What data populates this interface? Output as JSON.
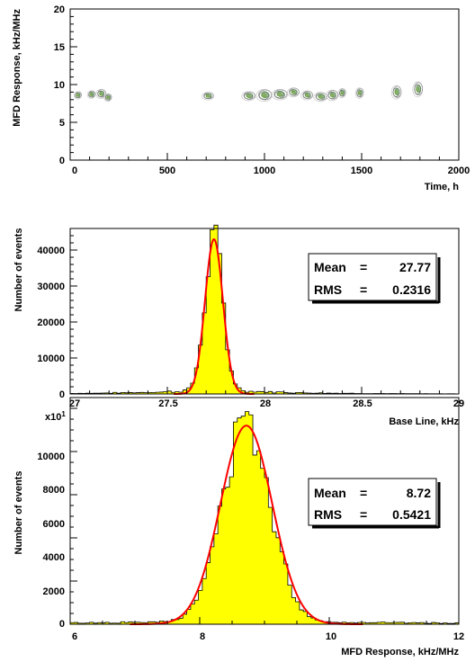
{
  "chart_data": [
    {
      "type": "scatter",
      "xlabel": "Time, h",
      "ylabel": "MFD Response, kHz/MHz",
      "xlim": [
        0,
        2000
      ],
      "ylim": [
        0,
        20
      ],
      "xticks": [
        "0",
        "500",
        "1000",
        "1500",
        "2000"
      ],
      "yticks": [
        "0",
        "5",
        "10",
        "15",
        "20"
      ],
      "clusters": [
        {
          "x": 40,
          "y": 8.6,
          "wx": 15,
          "wy": 0.5
        },
        {
          "x": 110,
          "y": 8.7,
          "wx": 20,
          "wy": 0.5
        },
        {
          "x": 160,
          "y": 8.8,
          "wx": 25,
          "wy": 0.6
        },
        {
          "x": 195,
          "y": 8.3,
          "wx": 15,
          "wy": 0.5
        },
        {
          "x": 710,
          "y": 8.5,
          "wx": 30,
          "wy": 0.5
        },
        {
          "x": 920,
          "y": 8.5,
          "wx": 35,
          "wy": 0.6
        },
        {
          "x": 1000,
          "y": 8.6,
          "wx": 40,
          "wy": 0.8
        },
        {
          "x": 1080,
          "y": 8.7,
          "wx": 40,
          "wy": 0.7
        },
        {
          "x": 1150,
          "y": 9.0,
          "wx": 30,
          "wy": 0.6
        },
        {
          "x": 1220,
          "y": 8.6,
          "wx": 30,
          "wy": 0.6
        },
        {
          "x": 1290,
          "y": 8.4,
          "wx": 35,
          "wy": 0.6
        },
        {
          "x": 1350,
          "y": 8.6,
          "wx": 30,
          "wy": 0.7
        },
        {
          "x": 1400,
          "y": 8.9,
          "wx": 15,
          "wy": 0.6
        },
        {
          "x": 1490,
          "y": 8.9,
          "wx": 20,
          "wy": 0.7
        },
        {
          "x": 1680,
          "y": 9.0,
          "wx": 25,
          "wy": 0.9
        },
        {
          "x": 1790,
          "y": 9.4,
          "wx": 25,
          "wy": 1.0
        }
      ]
    },
    {
      "type": "bar",
      "xlabel": "Base Line, kHz",
      "ylabel": "Number of events",
      "xlim": [
        27,
        29
      ],
      "ylim": [
        0,
        46000
      ],
      "xticks": [
        "27",
        "27.5",
        "28",
        "28.5",
        "29"
      ],
      "yticks": [
        "0",
        "10000",
        "20000",
        "30000",
        "40000"
      ],
      "hist": {
        "mean": 27.74,
        "sigma": 0.045,
        "amp": 43000,
        "tail": 1200,
        "bins": 100,
        "seed": 7
      },
      "fit": {
        "mean": 27.74,
        "sigma": 0.046,
        "amp": 43000
      },
      "stats": {
        "mean_label": "Mean",
        "mean_value": "27.77",
        "rms_label": "RMS",
        "rms_value": "0.2316"
      }
    },
    {
      "type": "bar",
      "xlabel": "MFD Response, kHz/MHz",
      "ylabel": "Number of events",
      "multiplier": "x10",
      "multiplier_exp": "1",
      "xlim": [
        6,
        12
      ],
      "ylim": [
        0,
        10500
      ],
      "xticks": [
        "6",
        "8",
        "10",
        "12"
      ],
      "yticks": [
        "0",
        "2000",
        "4000",
        "6000",
        "8000",
        "10000"
      ],
      "hist": {
        "mean": 8.72,
        "sigma": 0.37,
        "amp": 9200,
        "tail": 150,
        "bins": 100,
        "seed": 13
      },
      "fit": {
        "mean": 8.72,
        "sigma": 0.4,
        "amp": 9200
      },
      "stats": {
        "mean_label": "Mean",
        "mean_value": "8.72",
        "rms_label": "RMS",
        "rms_value": "0.5421"
      }
    }
  ],
  "colors": {
    "hist_fill": "#ffff00",
    "fit": "#ff0000",
    "axis": "#000000"
  }
}
